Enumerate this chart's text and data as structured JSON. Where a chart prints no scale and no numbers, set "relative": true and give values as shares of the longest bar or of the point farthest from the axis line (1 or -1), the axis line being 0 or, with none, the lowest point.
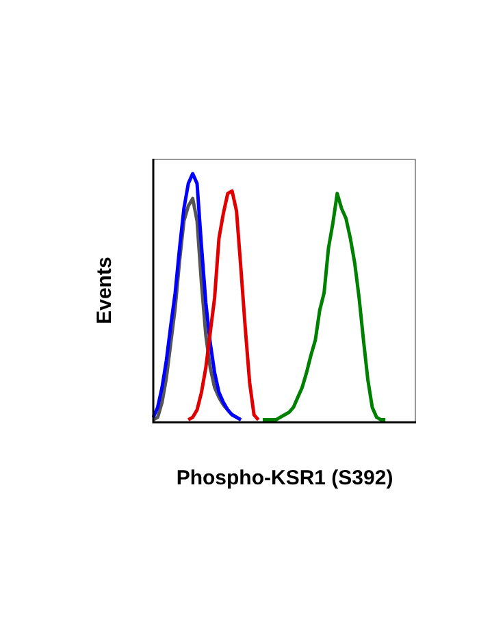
{
  "chart_data": {
    "type": "line",
    "relative": true,
    "xlabel": "Phospho-KSR1 (S392)",
    "ylabel": "Events",
    "categories": [
      null,
      null,
      null,
      null,
      null,
      null,
      null,
      null,
      null,
      null,
      null,
      null,
      null,
      null,
      null,
      null,
      null,
      null,
      null,
      null,
      null,
      null,
      null,
      null,
      null,
      null,
      null,
      null,
      null,
      null,
      null,
      null,
      null,
      null,
      null,
      null,
      null,
      null,
      null,
      null,
      null,
      null,
      null,
      null,
      null,
      null,
      null,
      null,
      null,
      null,
      null,
      null,
      null,
      null,
      null,
      null,
      null,
      null,
      null,
      null,
      null
    ],
    "series": [
      {
        "color": "#555555",
        "values": [
          0.01,
          0.02,
          0.08,
          0.18,
          0.32,
          0.46,
          0.65,
          0.81,
          0.87,
          0.9,
          0.81,
          0.56,
          0.35,
          0.22,
          0.14,
          0.1,
          0.07,
          0.05,
          0.03,
          0.02,
          0.01,
          null,
          null,
          null,
          null,
          null,
          null,
          null,
          null,
          null,
          null,
          null,
          null,
          null,
          null,
          null,
          null,
          null,
          null,
          null,
          null,
          null,
          null,
          null,
          null,
          null,
          null,
          null,
          null,
          null,
          null,
          null,
          null,
          null,
          null,
          null,
          null,
          null,
          null,
          null,
          null
        ]
      },
      {
        "color": "#0000ff",
        "values": [
          0.02,
          0.06,
          0.14,
          0.25,
          0.39,
          0.52,
          0.7,
          0.86,
          0.96,
          1,
          0.96,
          0.71,
          0.48,
          0.32,
          0.2,
          0.12,
          0.08,
          0.05,
          0.03,
          0.02,
          0.01,
          null,
          null,
          null,
          null,
          null,
          null,
          null,
          null,
          null,
          null,
          null,
          null,
          null,
          null,
          null,
          null,
          null,
          null,
          null,
          null,
          null,
          null,
          null,
          null,
          null,
          null,
          null,
          null,
          null,
          null,
          null,
          null,
          null,
          null,
          null,
          null,
          null,
          null,
          null,
          null
        ]
      },
      {
        "color": "#008000",
        "values": [
          null,
          null,
          null,
          null,
          null,
          null,
          null,
          null,
          null,
          null,
          null,
          null,
          null,
          null,
          null,
          null,
          null,
          null,
          null,
          null,
          null,
          null,
          null,
          null,
          null,
          0.01,
          0.01,
          0.01,
          0.01,
          0.02,
          0.03,
          0.04,
          0.06,
          0.1,
          0.14,
          0.2,
          0.27,
          0.33,
          0.45,
          0.52,
          0.7,
          0.8,
          0.92,
          0.86,
          0.82,
          0.74,
          0.64,
          0.5,
          0.33,
          0.17,
          0.06,
          0.02,
          0.01,
          0.01,
          null,
          null,
          null,
          null,
          null,
          null,
          null
        ]
      },
      {
        "color": "#e00000",
        "values": [
          null,
          null,
          null,
          null,
          null,
          null,
          null,
          null,
          0.01,
          0.02,
          0.05,
          0.12,
          0.22,
          0.36,
          0.5,
          0.74,
          0.84,
          0.92,
          0.93,
          0.85,
          0.62,
          0.38,
          0.16,
          0.03,
          0.01,
          null,
          null,
          null,
          null,
          null,
          null,
          null,
          null,
          null,
          null,
          null,
          null,
          null,
          null,
          null,
          null,
          null,
          null,
          null,
          null,
          null,
          null,
          null,
          null,
          null,
          null,
          null,
          null,
          null,
          null,
          null,
          null,
          null,
          null,
          null,
          null
        ]
      }
    ]
  }
}
